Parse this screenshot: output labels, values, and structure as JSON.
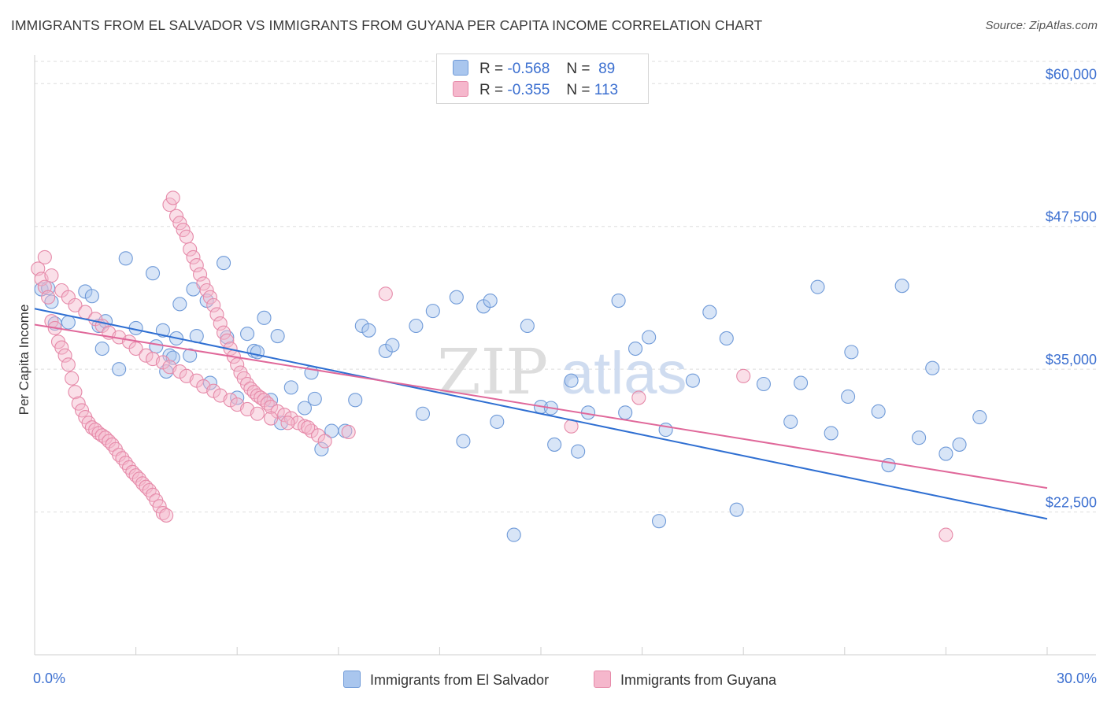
{
  "header": {
    "title": "IMMIGRANTS FROM EL SALVADOR VS IMMIGRANTS FROM GUYANA PER CAPITA INCOME CORRELATION CHART",
    "source": "Source: ZipAtlas.com"
  },
  "watermark": {
    "part1": "ZIP",
    "part2": "atlas"
  },
  "legend": {
    "r_label": "R =",
    "n_label": "N =",
    "series": [
      {
        "r": "-0.568",
        "n": "89"
      },
      {
        "r": "-0.355",
        "n": "113"
      }
    ]
  },
  "chart_data": {
    "type": "scatter",
    "title": "IMMIGRANTS FROM EL SALVADOR VS IMMIGRANTS FROM GUYANA PER CAPITA INCOME CORRELATION CHART",
    "xlabel": "",
    "ylabel": "Per Capita Income",
    "xlim": [
      0,
      30
    ],
    "ylim": [
      10000,
      62500
    ],
    "x_tick_labels": [
      "0.0%",
      "30.0%"
    ],
    "y_ticks": [
      22500,
      35000,
      47500,
      60000
    ],
    "y_tick_labels": [
      "$22,500",
      "$35,000",
      "$47,500",
      "$60,000"
    ],
    "grid": true,
    "legend_position": "top-center",
    "colors": {
      "el_salvador_fill": "#a9c6ee",
      "el_salvador_stroke": "#6f9ad8",
      "el_salvador_line": "#2f6fd2",
      "guyana_fill": "#f5b7cc",
      "guyana_stroke": "#e68aa9",
      "guyana_line": "#e0689a",
      "axis_text": "#3b6fd0"
    },
    "series": [
      {
        "name": "Immigrants from El Salvador",
        "trend": {
          "x": [
            0,
            30
          ],
          "y": [
            40300,
            21900
          ]
        },
        "x": [
          0.2,
          0.4,
          0.5,
          0.6,
          1.0,
          1.5,
          1.7,
          1.9,
          2.0,
          2.1,
          2.5,
          2.7,
          3.0,
          3.6,
          3.5,
          3.8,
          3.9,
          4.0,
          4.1,
          4.2,
          4.3,
          4.6,
          4.7,
          4.8,
          5.1,
          5.2,
          5.6,
          5.7,
          6.0,
          6.3,
          6.5,
          6.6,
          6.8,
          7.0,
          7.2,
          7.3,
          7.6,
          8.0,
          8.2,
          8.3,
          8.5,
          8.8,
          9.2,
          9.5,
          9.7,
          9.9,
          10.4,
          10.6,
          11.3,
          11.5,
          11.8,
          12.5,
          12.7,
          13.3,
          13.5,
          13.7,
          14.2,
          14.6,
          15.0,
          15.3,
          15.4,
          15.9,
          16.1,
          16.4,
          17.3,
          17.5,
          17.8,
          18.2,
          18.5,
          18.7,
          19.5,
          20.0,
          20.5,
          20.8,
          21.6,
          22.4,
          22.7,
          23.2,
          23.6,
          24.1,
          24.2,
          25.0,
          25.3,
          25.7,
          26.2,
          26.6,
          27.0,
          27.4,
          28.0
        ],
        "y": [
          42000,
          42100,
          40900,
          39000,
          39100,
          41800,
          41400,
          38800,
          36800,
          39200,
          35000,
          44700,
          38600,
          37000,
          43400,
          38400,
          34800,
          36200,
          36000,
          37700,
          40700,
          36200,
          42000,
          37900,
          41000,
          33800,
          44300,
          37800,
          32500,
          38100,
          36600,
          36500,
          39500,
          32300,
          37900,
          30300,
          33400,
          31600,
          34700,
          32400,
          28000,
          29600,
          29600,
          32300,
          38800,
          38400,
          36600,
          37100,
          38800,
          31100,
          40100,
          41300,
          28700,
          40500,
          41000,
          30400,
          20500,
          38800,
          31700,
          31600,
          28400,
          34000,
          27800,
          31200,
          41000,
          31200,
          36800,
          37800,
          21700,
          29700,
          34000,
          40000,
          37700,
          22700,
          33700,
          30400,
          33800,
          42200,
          29400,
          32600,
          36500,
          31300,
          26600,
          42300,
          29000,
          35100,
          27600,
          28400,
          30800
        ]
      },
      {
        "name": "Immigrants from Guyana",
        "trend": {
          "x": [
            0,
            30
          ],
          "y": [
            38900,
            24600
          ]
        },
        "x": [
          0.1,
          0.2,
          0.3,
          0.4,
          0.5,
          0.6,
          0.7,
          0.8,
          0.9,
          1.0,
          1.1,
          1.2,
          1.3,
          1.4,
          1.5,
          1.6,
          1.7,
          1.8,
          1.9,
          2.0,
          2.1,
          2.2,
          2.3,
          2.4,
          2.5,
          2.6,
          2.7,
          2.8,
          2.9,
          3.0,
          3.1,
          3.2,
          3.3,
          3.4,
          3.5,
          3.6,
          3.7,
          3.8,
          3.9,
          4.0,
          4.1,
          4.2,
          4.3,
          4.4,
          4.5,
          4.6,
          4.7,
          4.8,
          4.9,
          5.0,
          5.1,
          5.2,
          5.3,
          5.4,
          5.5,
          5.6,
          5.7,
          5.8,
          5.9,
          6.0,
          6.1,
          6.2,
          6.3,
          6.4,
          6.5,
          6.6,
          6.7,
          6.8,
          6.9,
          7.0,
          7.2,
          7.4,
          7.6,
          7.8,
          8.0,
          8.2,
          8.4,
          8.6,
          0.3,
          0.5,
          0.8,
          1.0,
          1.2,
          1.5,
          1.8,
          2.0,
          2.2,
          2.5,
          2.8,
          3.0,
          3.3,
          3.5,
          3.8,
          4.0,
          4.3,
          4.5,
          4.8,
          5.0,
          5.3,
          5.5,
          5.8,
          6.0,
          6.3,
          6.6,
          7.0,
          7.5,
          8.1,
          9.3,
          10.4,
          15.9,
          17.9,
          21.0,
          27.0
        ],
        "y": [
          43800,
          42900,
          42200,
          41300,
          39200,
          38600,
          37400,
          36900,
          36200,
          35400,
          34200,
          33000,
          32000,
          31400,
          30800,
          30300,
          29900,
          29700,
          29400,
          29200,
          29000,
          28700,
          28400,
          28000,
          27500,
          27200,
          26800,
          26400,
          26000,
          25700,
          25400,
          25000,
          24700,
          24400,
          24000,
          23500,
          23000,
          22400,
          22200,
          49400,
          50000,
          48400,
          47800,
          47200,
          46600,
          45500,
          44800,
          44100,
          43300,
          42500,
          41900,
          41300,
          40600,
          39800,
          39000,
          38200,
          37500,
          36800,
          36100,
          35400,
          34700,
          34200,
          33700,
          33300,
          33000,
          32700,
          32500,
          32300,
          32000,
          31700,
          31300,
          31000,
          30700,
          30300,
          30000,
          29600,
          29200,
          28700,
          44800,
          43200,
          41900,
          41300,
          40600,
          40000,
          39400,
          38800,
          38200,
          37800,
          37400,
          36800,
          36200,
          35900,
          35600,
          35200,
          34800,
          34400,
          34000,
          33500,
          33100,
          32700,
          32300,
          31900,
          31500,
          31100,
          30700,
          30300,
          29900,
          29500,
          41600,
          30000,
          32500,
          34400,
          20500
        ]
      }
    ]
  },
  "bottom_legend": {
    "items": [
      "Immigrants from El Salvador",
      "Immigrants from Guyana"
    ]
  }
}
